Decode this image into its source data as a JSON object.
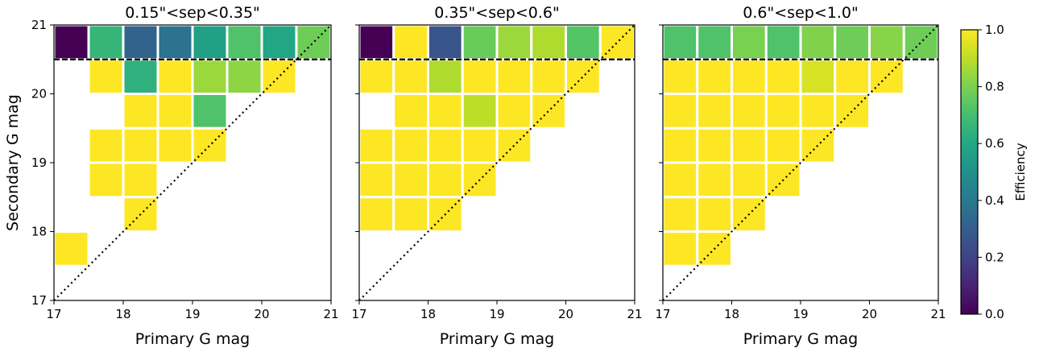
{
  "chart_data": [
    {
      "type": "heatmap",
      "title": "0.15\"<sep<0.35\"",
      "xlabel": "Primary G mag",
      "ylabel": "Secondary G mag",
      "xlim": [
        17,
        21
      ],
      "ylim": [
        17,
        21
      ],
      "xticks": [
        "17",
        "18",
        "19",
        "20",
        "21"
      ],
      "yticks": [
        "17",
        "18",
        "19",
        "20",
        "21"
      ],
      "bin_width": 0.5,
      "cells": [
        {
          "x": 17.0,
          "y": 20.5,
          "value": 0.0
        },
        {
          "x": 17.5,
          "y": 20.5,
          "value": 0.66
        },
        {
          "x": 18.0,
          "y": 20.5,
          "value": 0.32
        },
        {
          "x": 18.5,
          "y": 20.5,
          "value": 0.38
        },
        {
          "x": 19.0,
          "y": 20.5,
          "value": 0.57
        },
        {
          "x": 19.5,
          "y": 20.5,
          "value": 0.72
        },
        {
          "x": 20.0,
          "y": 20.5,
          "value": 0.6
        },
        {
          "x": 20.5,
          "y": 20.5,
          "value": 0.78
        },
        {
          "x": 17.5,
          "y": 20.0,
          "value": 1.0
        },
        {
          "x": 18.0,
          "y": 20.0,
          "value": 0.64
        },
        {
          "x": 18.5,
          "y": 20.0,
          "value": 1.0
        },
        {
          "x": 19.0,
          "y": 20.0,
          "value": 0.85
        },
        {
          "x": 19.5,
          "y": 20.0,
          "value": 0.83
        },
        {
          "x": 20.0,
          "y": 20.0,
          "value": 1.0
        },
        {
          "x": 18.0,
          "y": 19.5,
          "value": 1.0
        },
        {
          "x": 18.5,
          "y": 19.5,
          "value": 1.0
        },
        {
          "x": 19.0,
          "y": 19.5,
          "value": 0.72
        },
        {
          "x": 17.5,
          "y": 19.0,
          "value": 1.0
        },
        {
          "x": 18.0,
          "y": 19.0,
          "value": 1.0
        },
        {
          "x": 18.5,
          "y": 19.0,
          "value": 1.0
        },
        {
          "x": 19.0,
          "y": 19.0,
          "value": 1.0
        },
        {
          "x": 17.5,
          "y": 18.5,
          "value": 1.0
        },
        {
          "x": 18.0,
          "y": 18.5,
          "value": 1.0
        },
        {
          "x": 18.0,
          "y": 18.0,
          "value": 1.0
        },
        {
          "x": 17.0,
          "y": 17.5,
          "value": 1.0
        }
      ],
      "dashed_line_y": 20.5,
      "diagonal": [
        [
          17,
          17
        ],
        [
          21,
          21
        ]
      ]
    },
    {
      "type": "heatmap",
      "title": "0.35\"<sep<0.6\"",
      "xlabel": "Primary G mag",
      "ylabel": "",
      "xlim": [
        17,
        21
      ],
      "ylim": [
        17,
        21
      ],
      "xticks": [
        "17",
        "18",
        "19",
        "20",
        "21"
      ],
      "yticks": [],
      "bin_width": 0.5,
      "cells": [
        {
          "x": 17.0,
          "y": 20.5,
          "value": 0.0
        },
        {
          "x": 17.5,
          "y": 20.5,
          "value": 1.0
        },
        {
          "x": 18.0,
          "y": 20.5,
          "value": 0.27
        },
        {
          "x": 18.5,
          "y": 20.5,
          "value": 0.77
        },
        {
          "x": 19.0,
          "y": 20.5,
          "value": 0.85
        },
        {
          "x": 19.5,
          "y": 20.5,
          "value": 0.88
        },
        {
          "x": 20.0,
          "y": 20.5,
          "value": 0.73
        },
        {
          "x": 20.5,
          "y": 20.5,
          "value": 1.0
        },
        {
          "x": 17.0,
          "y": 20.0,
          "value": 1.0
        },
        {
          "x": 17.5,
          "y": 20.0,
          "value": 1.0
        },
        {
          "x": 18.0,
          "y": 20.0,
          "value": 0.88
        },
        {
          "x": 18.5,
          "y": 20.0,
          "value": 1.0
        },
        {
          "x": 19.0,
          "y": 20.0,
          "value": 1.0
        },
        {
          "x": 19.5,
          "y": 20.0,
          "value": 1.0
        },
        {
          "x": 20.0,
          "y": 20.0,
          "value": 1.0
        },
        {
          "x": 17.5,
          "y": 19.5,
          "value": 1.0
        },
        {
          "x": 18.0,
          "y": 19.5,
          "value": 1.0
        },
        {
          "x": 18.5,
          "y": 19.5,
          "value": 0.9
        },
        {
          "x": 19.0,
          "y": 19.5,
          "value": 1.0
        },
        {
          "x": 19.5,
          "y": 19.5,
          "value": 1.0
        },
        {
          "x": 17.0,
          "y": 19.0,
          "value": 1.0
        },
        {
          "x": 17.5,
          "y": 19.0,
          "value": 1.0
        },
        {
          "x": 18.0,
          "y": 19.0,
          "value": 1.0
        },
        {
          "x": 18.5,
          "y": 19.0,
          "value": 1.0
        },
        {
          "x": 19.0,
          "y": 19.0,
          "value": 1.0
        },
        {
          "x": 17.0,
          "y": 18.5,
          "value": 1.0
        },
        {
          "x": 17.5,
          "y": 18.5,
          "value": 1.0
        },
        {
          "x": 18.0,
          "y": 18.5,
          "value": 1.0
        },
        {
          "x": 18.5,
          "y": 18.5,
          "value": 1.0
        },
        {
          "x": 17.0,
          "y": 18.0,
          "value": 1.0
        },
        {
          "x": 17.5,
          "y": 18.0,
          "value": 1.0
        },
        {
          "x": 18.0,
          "y": 18.0,
          "value": 1.0
        }
      ],
      "dashed_line_y": 20.5,
      "diagonal": [
        [
          17,
          17
        ],
        [
          21,
          21
        ]
      ]
    },
    {
      "type": "heatmap",
      "title": "0.6\"<sep<1.0\"",
      "xlabel": "Primary G mag",
      "ylabel": "",
      "xlim": [
        17,
        21
      ],
      "ylim": [
        17,
        21
      ],
      "xticks": [
        "17",
        "18",
        "19",
        "20",
        "21"
      ],
      "yticks": [],
      "bin_width": 0.5,
      "cells": [
        {
          "x": 17.0,
          "y": 20.5,
          "value": 0.72
        },
        {
          "x": 17.5,
          "y": 20.5,
          "value": 0.72
        },
        {
          "x": 18.0,
          "y": 20.5,
          "value": 0.8
        },
        {
          "x": 18.5,
          "y": 20.5,
          "value": 0.72
        },
        {
          "x": 19.0,
          "y": 20.5,
          "value": 0.81
        },
        {
          "x": 19.5,
          "y": 20.5,
          "value": 0.78
        },
        {
          "x": 20.0,
          "y": 20.5,
          "value": 0.82
        },
        {
          "x": 20.5,
          "y": 20.5,
          "value": 0.78
        },
        {
          "x": 17.0,
          "y": 20.0,
          "value": 1.0
        },
        {
          "x": 17.5,
          "y": 20.0,
          "value": 1.0
        },
        {
          "x": 18.0,
          "y": 20.0,
          "value": 1.0
        },
        {
          "x": 18.5,
          "y": 20.0,
          "value": 1.0
        },
        {
          "x": 19.0,
          "y": 20.0,
          "value": 0.94
        },
        {
          "x": 19.5,
          "y": 20.0,
          "value": 1.0
        },
        {
          "x": 20.0,
          "y": 20.0,
          "value": 1.0
        },
        {
          "x": 17.0,
          "y": 19.5,
          "value": 1.0
        },
        {
          "x": 17.5,
          "y": 19.5,
          "value": 1.0
        },
        {
          "x": 18.0,
          "y": 19.5,
          "value": 1.0
        },
        {
          "x": 18.5,
          "y": 19.5,
          "value": 1.0
        },
        {
          "x": 19.0,
          "y": 19.5,
          "value": 1.0
        },
        {
          "x": 19.5,
          "y": 19.5,
          "value": 1.0
        },
        {
          "x": 17.0,
          "y": 19.0,
          "value": 1.0
        },
        {
          "x": 17.5,
          "y": 19.0,
          "value": 1.0
        },
        {
          "x": 18.0,
          "y": 19.0,
          "value": 1.0
        },
        {
          "x": 18.5,
          "y": 19.0,
          "value": 1.0
        },
        {
          "x": 19.0,
          "y": 19.0,
          "value": 1.0
        },
        {
          "x": 17.0,
          "y": 18.5,
          "value": 1.0
        },
        {
          "x": 17.5,
          "y": 18.5,
          "value": 1.0
        },
        {
          "x": 18.0,
          "y": 18.5,
          "value": 1.0
        },
        {
          "x": 18.5,
          "y": 18.5,
          "value": 1.0
        },
        {
          "x": 17.0,
          "y": 18.0,
          "value": 1.0
        },
        {
          "x": 17.5,
          "y": 18.0,
          "value": 1.0
        },
        {
          "x": 18.0,
          "y": 18.0,
          "value": 1.0
        },
        {
          "x": 17.0,
          "y": 17.5,
          "value": 1.0
        },
        {
          "x": 17.5,
          "y": 17.5,
          "value": 1.0
        }
      ],
      "dashed_line_y": 20.5,
      "diagonal": [
        [
          17,
          17
        ],
        [
          21,
          21
        ]
      ]
    }
  ],
  "colorbar": {
    "label": "Efficiency",
    "colormap": "viridis",
    "range": [
      0.0,
      1.0
    ],
    "ticks": [
      "0.0",
      "0.2",
      "0.4",
      "0.6",
      "0.8",
      "1.0"
    ]
  }
}
